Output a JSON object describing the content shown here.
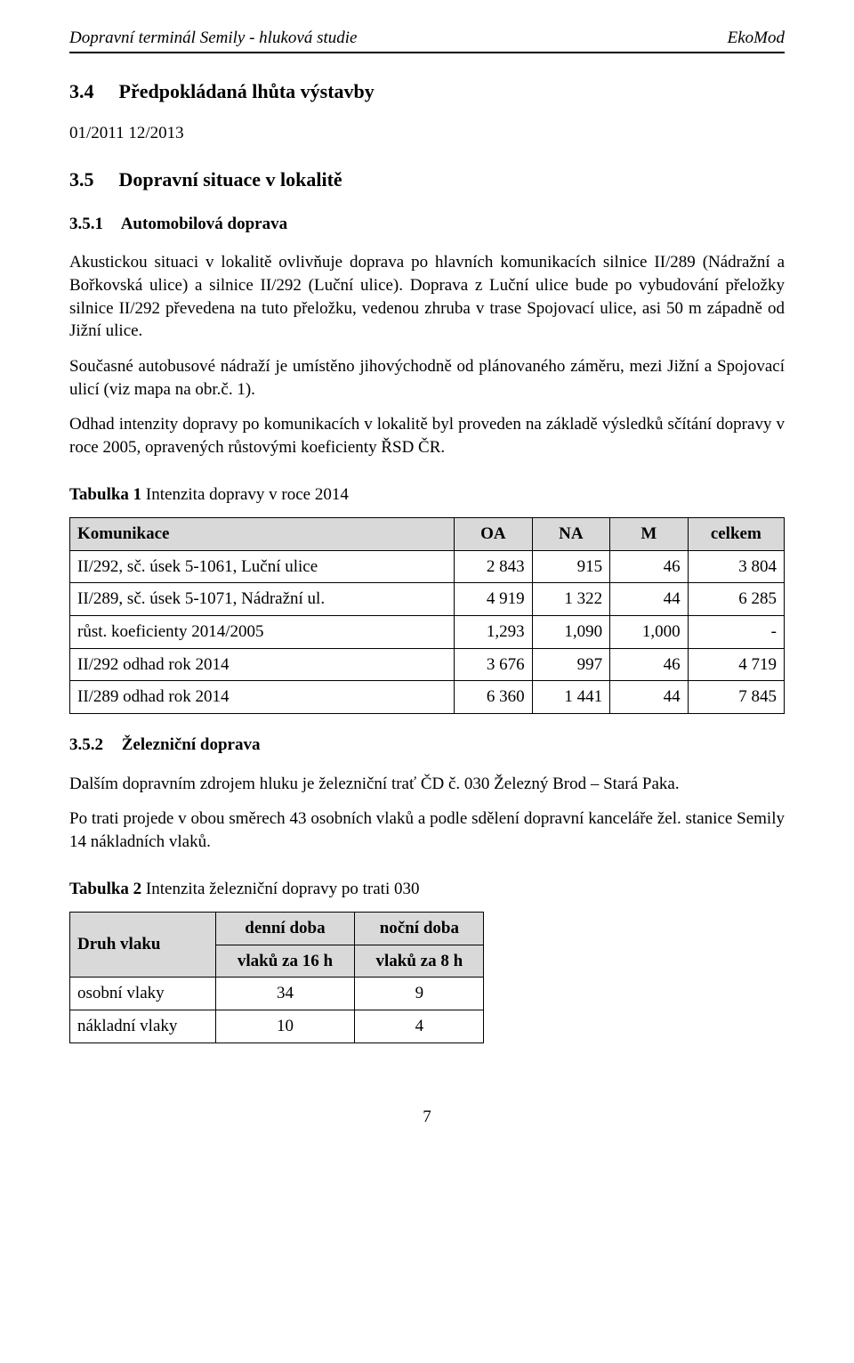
{
  "header": {
    "left": "Dopravní terminál Semily - hluková studie",
    "right": "EkoMod"
  },
  "s34": {
    "num": "3.4",
    "title": "Předpokládaná lhůta výstavby",
    "period": "01/2011 12/2013"
  },
  "s35": {
    "num": "3.5",
    "title": "Dopravní situace v lokalitě"
  },
  "s351": {
    "num": "3.5.1",
    "title": "Automobilová doprava",
    "p1": "Akustickou situaci v lokalitě ovlivňuje doprava po hlavních komunikacích silnice II/289 (Nádražní a Bořkovská ulice) a silnice II/292 (Luční ulice). Doprava z Luční ulice bude po vybudování přeložky silnice II/292 převedena na tuto přeložku, vedenou zhruba v trase Spojovací ulice, asi 50 m západně od Jižní ulice.",
    "p2": "Současné autobusové nádraží je umístěno jihovýchodně od plánovaného záměru, mezi Jižní a Spojovací ulicí (viz mapa na obr.č. 1).",
    "p3": "Odhad intenzity dopravy po komunikacích v lokalitě byl proveden na základě výsledků sčítání dopravy v roce 2005, opravených růstovými koeficienty ŘSD ČR."
  },
  "table1": {
    "title_b": "Tabulka 1",
    "title_rest": "  Intenzita dopravy v roce 2014",
    "cols": [
      "Komunikace",
      "OA",
      "NA",
      "M",
      "celkem"
    ],
    "rows": [
      {
        "label": "II/292, sč. úsek 5-1061, Luční ulice",
        "v": [
          "2 843",
          "915",
          "46",
          "3 804"
        ]
      },
      {
        "label": "II/289, sč. úsek 5-1071, Nádražní ul.",
        "v": [
          "4 919",
          "1 322",
          "44",
          "6 285"
        ]
      },
      {
        "label": "růst. koeficienty 2014/2005",
        "v": [
          "1,293",
          "1,090",
          "1,000",
          "-"
        ]
      },
      {
        "label": "II/292 odhad rok 2014",
        "v": [
          "3 676",
          "997",
          "46",
          "4 719"
        ]
      },
      {
        "label": "II/289 odhad rok 2014",
        "v": [
          "6 360",
          "1 441",
          "44",
          "7 845"
        ]
      }
    ]
  },
  "s352": {
    "num": "3.5.2",
    "title": "Železniční doprava",
    "p1": "Dalším dopravním zdrojem hluku je železniční trať ČD č. 030  Železný Brod – Stará Paka.",
    "p2": "Po trati projede v obou směrech 43 osobních vlaků a podle sdělení dopravní kanceláře žel. stanice Semily 14 nákladních vlaků."
  },
  "table2": {
    "title_b": "Tabulka 2",
    "title_rest": "   Intenzita železniční dopravy po trati 030",
    "head1": [
      "Druh vlaku",
      "denní doba",
      "noční doba"
    ],
    "head2": [
      "vlaků za 16 h",
      "vlaků za 8 h"
    ],
    "rows": [
      {
        "label": "osobní vlaky",
        "v": [
          "34",
          "9"
        ]
      },
      {
        "label": "nákladní vlaky",
        "v": [
          "10",
          "4"
        ]
      }
    ]
  },
  "page": "7"
}
